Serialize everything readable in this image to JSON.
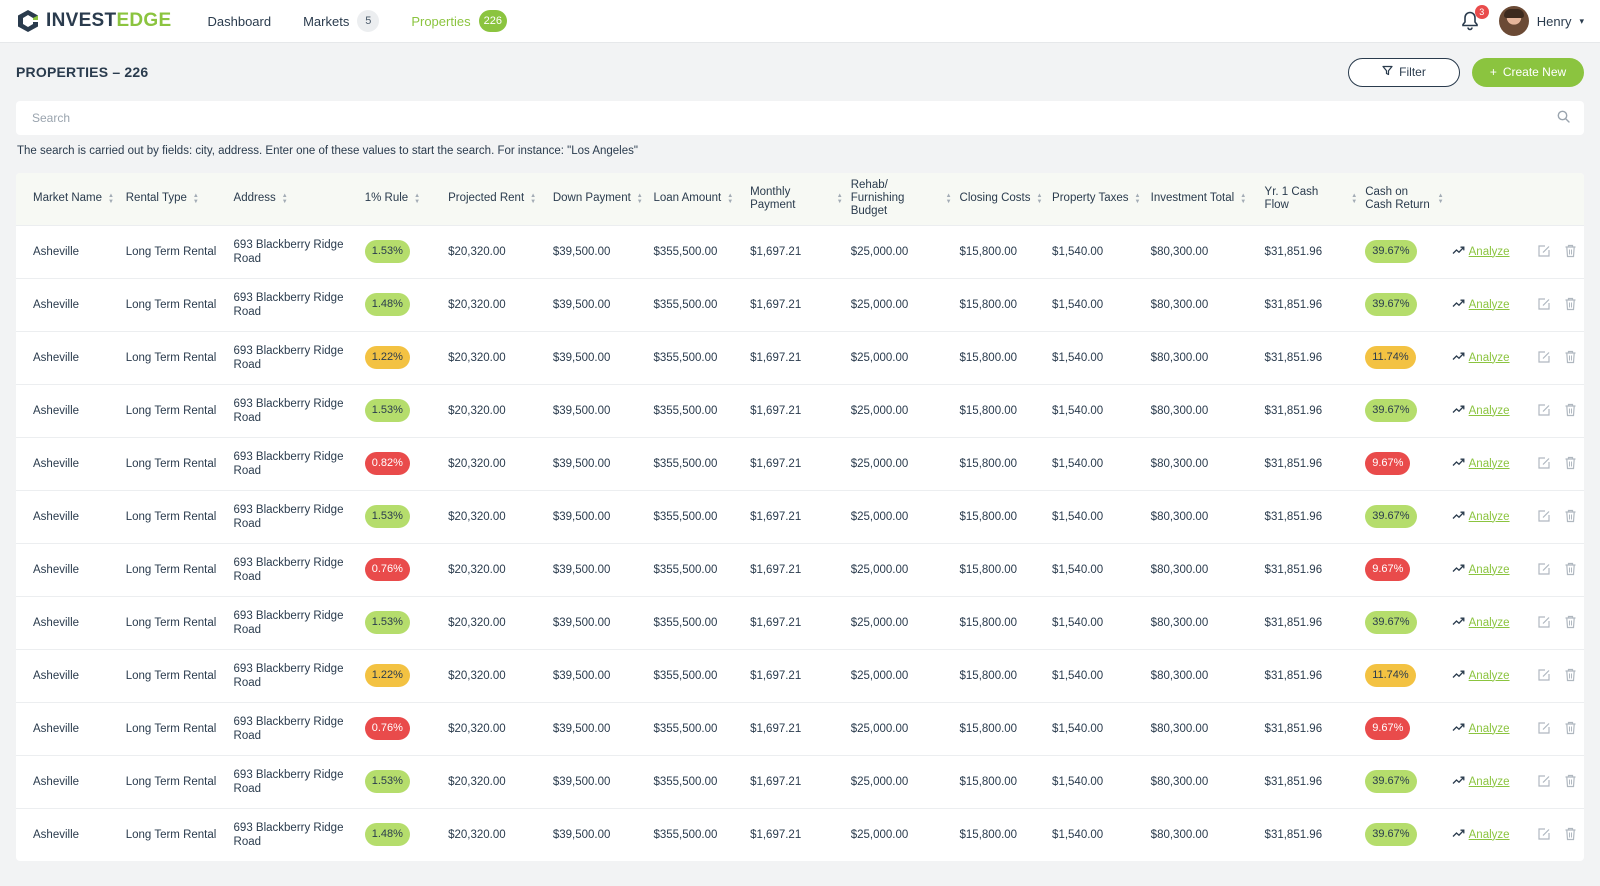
{
  "app": {
    "logo_prefix": "INVEST",
    "logo_suffix": "EDGE",
    "brand_color": "#8bc43f"
  },
  "nav": {
    "items": [
      {
        "label": "Dashboard",
        "badge": null,
        "active": false
      },
      {
        "label": "Markets",
        "badge": "5",
        "active": false
      },
      {
        "label": "Properties",
        "badge": "226",
        "active": true
      }
    ]
  },
  "user": {
    "name": "Henry",
    "notification_count": "3"
  },
  "page": {
    "title": "PROPERTIES – 226",
    "filter_label": "Filter",
    "create_label": "Create New"
  },
  "search": {
    "placeholder": "Search",
    "hint": "The search is carried out by fields: city, address. Enter one of these values to start the search. For instance: \"Los Angeles\""
  },
  "table": {
    "columns": [
      "Market Name",
      "Rental Type",
      "Address",
      "1% Rule",
      "Projected Rent",
      "Down Payment",
      "Loan Amount",
      "Monthly Payment",
      "Rehab/ Furnishing Budget",
      "Closing Costs",
      "Property Taxes",
      "Investment Total",
      "Yr. 1 Cash Flow",
      "Cash on Cash Return"
    ],
    "analyze_label": "Analyze",
    "rows": [
      {
        "market": "Asheville",
        "rental": "Long Term Rental",
        "address": "693 Blackberry Ridge Road",
        "rule": "1.53%",
        "rule_status": "green",
        "rent": "$20,320.00",
        "down": "$39,500.00",
        "loan": "$355,500.00",
        "monthly": "$1,697.21",
        "rehab": "$25,000.00",
        "closing": "$15,800.00",
        "taxes": "$1,540.00",
        "total": "$80,300.00",
        "cashflow": "$31,851.96",
        "coc": "39.67%",
        "coc_status": "green"
      },
      {
        "market": "Asheville",
        "rental": "Long Term Rental",
        "address": "693 Blackberry Ridge Road",
        "rule": "1.48%",
        "rule_status": "green",
        "rent": "$20,320.00",
        "down": "$39,500.00",
        "loan": "$355,500.00",
        "monthly": "$1,697.21",
        "rehab": "$25,000.00",
        "closing": "$15,800.00",
        "taxes": "$1,540.00",
        "total": "$80,300.00",
        "cashflow": "$31,851.96",
        "coc": "39.67%",
        "coc_status": "green"
      },
      {
        "market": "Asheville",
        "rental": "Long Term Rental",
        "address": "693 Blackberry Ridge Road",
        "rule": "1.22%",
        "rule_status": "yellow",
        "rent": "$20,320.00",
        "down": "$39,500.00",
        "loan": "$355,500.00",
        "monthly": "$1,697.21",
        "rehab": "$25,000.00",
        "closing": "$15,800.00",
        "taxes": "$1,540.00",
        "total": "$80,300.00",
        "cashflow": "$31,851.96",
        "coc": "11.74%",
        "coc_status": "yellow"
      },
      {
        "market": "Asheville",
        "rental": "Long Term Rental",
        "address": "693 Blackberry Ridge Road",
        "rule": "1.53%",
        "rule_status": "green",
        "rent": "$20,320.00",
        "down": "$39,500.00",
        "loan": "$355,500.00",
        "monthly": "$1,697.21",
        "rehab": "$25,000.00",
        "closing": "$15,800.00",
        "taxes": "$1,540.00",
        "total": "$80,300.00",
        "cashflow": "$31,851.96",
        "coc": "39.67%",
        "coc_status": "green"
      },
      {
        "market": "Asheville",
        "rental": "Long Term Rental",
        "address": "693 Blackberry Ridge Road",
        "rule": "0.82%",
        "rule_status": "red",
        "rent": "$20,320.00",
        "down": "$39,500.00",
        "loan": "$355,500.00",
        "monthly": "$1,697.21",
        "rehab": "$25,000.00",
        "closing": "$15,800.00",
        "taxes": "$1,540.00",
        "total": "$80,300.00",
        "cashflow": "$31,851.96",
        "coc": "9.67%",
        "coc_status": "red"
      },
      {
        "market": "Asheville",
        "rental": "Long Term Rental",
        "address": "693 Blackberry Ridge Road",
        "rule": "1.53%",
        "rule_status": "green",
        "rent": "$20,320.00",
        "down": "$39,500.00",
        "loan": "$355,500.00",
        "monthly": "$1,697.21",
        "rehab": "$25,000.00",
        "closing": "$15,800.00",
        "taxes": "$1,540.00",
        "total": "$80,300.00",
        "cashflow": "$31,851.96",
        "coc": "39.67%",
        "coc_status": "green"
      },
      {
        "market": "Asheville",
        "rental": "Long Term Rental",
        "address": "693 Blackberry Ridge Road",
        "rule": "0.76%",
        "rule_status": "red",
        "rent": "$20,320.00",
        "down": "$39,500.00",
        "loan": "$355,500.00",
        "monthly": "$1,697.21",
        "rehab": "$25,000.00",
        "closing": "$15,800.00",
        "taxes": "$1,540.00",
        "total": "$80,300.00",
        "cashflow": "$31,851.96",
        "coc": "9.67%",
        "coc_status": "red"
      },
      {
        "market": "Asheville",
        "rental": "Long Term Rental",
        "address": "693 Blackberry Ridge Road",
        "rule": "1.53%",
        "rule_status": "green",
        "rent": "$20,320.00",
        "down": "$39,500.00",
        "loan": "$355,500.00",
        "monthly": "$1,697.21",
        "rehab": "$25,000.00",
        "closing": "$15,800.00",
        "taxes": "$1,540.00",
        "total": "$80,300.00",
        "cashflow": "$31,851.96",
        "coc": "39.67%",
        "coc_status": "green"
      },
      {
        "market": "Asheville",
        "rental": "Long Term Rental",
        "address": "693 Blackberry Ridge Road",
        "rule": "1.22%",
        "rule_status": "yellow",
        "rent": "$20,320.00",
        "down": "$39,500.00",
        "loan": "$355,500.00",
        "monthly": "$1,697.21",
        "rehab": "$25,000.00",
        "closing": "$15,800.00",
        "taxes": "$1,540.00",
        "total": "$80,300.00",
        "cashflow": "$31,851.96",
        "coc": "11.74%",
        "coc_status": "yellow"
      },
      {
        "market": "Asheville",
        "rental": "Long Term Rental",
        "address": "693 Blackberry Ridge Road",
        "rule": "0.76%",
        "rule_status": "red",
        "rent": "$20,320.00",
        "down": "$39,500.00",
        "loan": "$355,500.00",
        "monthly": "$1,697.21",
        "rehab": "$25,000.00",
        "closing": "$15,800.00",
        "taxes": "$1,540.00",
        "total": "$80,300.00",
        "cashflow": "$31,851.96",
        "coc": "9.67%",
        "coc_status": "red"
      },
      {
        "market": "Asheville",
        "rental": "Long Term Rental",
        "address": "693 Blackberry Ridge Road",
        "rule": "1.53%",
        "rule_status": "green",
        "rent": "$20,320.00",
        "down": "$39,500.00",
        "loan": "$355,500.00",
        "monthly": "$1,697.21",
        "rehab": "$25,000.00",
        "closing": "$15,800.00",
        "taxes": "$1,540.00",
        "total": "$80,300.00",
        "cashflow": "$31,851.96",
        "coc": "39.67%",
        "coc_status": "green"
      },
      {
        "market": "Asheville",
        "rental": "Long Term Rental",
        "address": "693 Blackberry Ridge Road",
        "rule": "1.48%",
        "rule_status": "green",
        "rent": "$20,320.00",
        "down": "$39,500.00",
        "loan": "$355,500.00",
        "monthly": "$1,697.21",
        "rehab": "$25,000.00",
        "closing": "$15,800.00",
        "taxes": "$1,540.00",
        "total": "$80,300.00",
        "cashflow": "$31,851.96",
        "coc": "39.67%",
        "coc_status": "green"
      }
    ]
  },
  "icons": {
    "search": "search-icon",
    "filter": "filter-icon",
    "plus": "plus-icon",
    "bell": "bell-icon",
    "sort": "sort-icon",
    "trend": "trend-up-icon",
    "edit": "edit-icon",
    "delete": "trash-icon"
  }
}
